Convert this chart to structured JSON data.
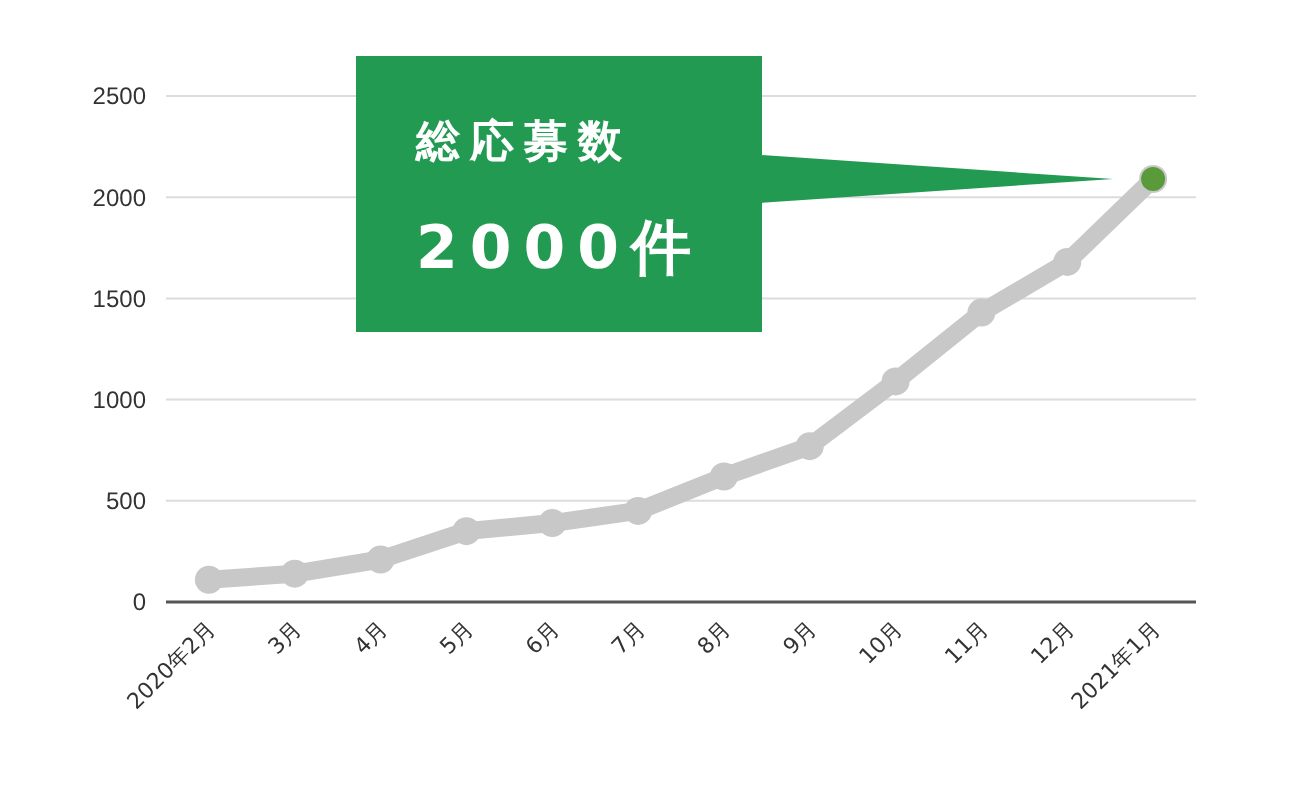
{
  "chart_data": {
    "type": "line",
    "categories": [
      "2020年2月",
      "3月",
      "4月",
      "5月",
      "6月",
      "7月",
      "8月",
      "9月",
      "10月",
      "11月",
      "12月",
      "2021年1月"
    ],
    "series": [
      {
        "color": "#c8c8c8",
        "values": [
          110,
          140,
          210,
          350,
          390,
          450,
          620,
          770,
          1090,
          1430,
          1680,
          2090
        ]
      },
      {
        "type": "scatter",
        "color": "#5a9a3a",
        "x": [
          "2021年1月"
        ],
        "values": [
          2090
        ]
      }
    ],
    "ylim": [
      0,
      2500
    ],
    "yticks": [
      0,
      500,
      1000,
      1500,
      2000,
      2500
    ],
    "grid": "y",
    "marker": "circle",
    "annotations": [
      "総応募数\n2000件"
    ]
  }
}
